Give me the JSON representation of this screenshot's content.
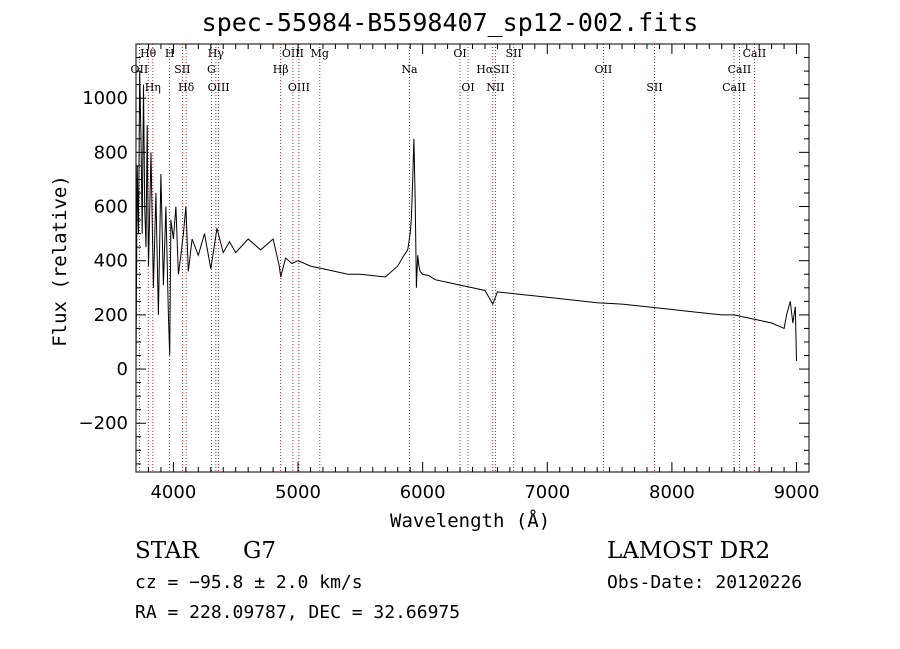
{
  "chart_data": {
    "type": "line",
    "title": "spec-55984-B5598407_sp12-002.fits",
    "xlabel": "Wavelength (Å)",
    "ylabel": "Flux (relative)",
    "xlim": [
      3700,
      9100
    ],
    "ylim": [
      -380,
      1200
    ],
    "x_ticks": [
      4000,
      5000,
      6000,
      7000,
      8000,
      9000
    ],
    "y_ticks": [
      -200,
      0,
      200,
      400,
      600,
      800,
      1000
    ],
    "grid": false,
    "series": [
      {
        "x": [
          3700,
          3710,
          3720,
          3730,
          3740,
          3750,
          3760,
          3770,
          3780,
          3790,
          3800,
          3820,
          3840,
          3860,
          3880,
          3900,
          3920,
          3940,
          3960,
          3970,
          3980,
          4000,
          4020,
          4040,
          4060,
          4080,
          4100,
          4120,
          4150,
          4200,
          4250,
          4300,
          4350,
          4400,
          4450,
          4500,
          4600,
          4700,
          4800,
          4850,
          4861,
          4900,
          4950,
          5000,
          5100,
          5200,
          5300,
          5400,
          5500,
          5600,
          5700,
          5800,
          5850,
          5880,
          5900,
          5910,
          5920,
          5930,
          5940,
          5950,
          5960,
          5970,
          5980,
          6000,
          6050,
          6100,
          6200,
          6300,
          6400,
          6500,
          6563,
          6600,
          6700,
          6800,
          6900,
          7000,
          7200,
          7400,
          7600,
          7800,
          8000,
          8200,
          8400,
          8500,
          8600,
          8700,
          8800,
          8850,
          8900,
          8920,
          8950,
          8970,
          8990,
          9000
        ],
        "y": [
          0,
          750,
          500,
          1100,
          850,
          500,
          1050,
          600,
          450,
          900,
          380,
          800,
          300,
          650,
          200,
          720,
          310,
          600,
          200,
          50,
          550,
          480,
          600,
          350,
          420,
          500,
          600,
          360,
          480,
          420,
          500,
          370,
          520,
          430,
          470,
          430,
          480,
          440,
          480,
          380,
          340,
          410,
          390,
          400,
          380,
          370,
          360,
          350,
          350,
          345,
          340,
          380,
          420,
          440,
          500,
          560,
          700,
          850,
          620,
          300,
          420,
          380,
          360,
          350,
          345,
          330,
          320,
          310,
          300,
          290,
          240,
          285,
          280,
          275,
          270,
          265,
          255,
          245,
          240,
          230,
          220,
          210,
          200,
          200,
          190,
          180,
          170,
          160,
          150,
          200,
          250,
          170,
          230,
          30
        ]
      }
    ],
    "lines": [
      {
        "label": "Hθ",
        "x": 3798
      },
      {
        "label": "OII",
        "x": 3727
      },
      {
        "label": "Hη",
        "x": 3835
      },
      {
        "label": "H",
        "x": 3970
      },
      {
        "label": "SII",
        "x": 4072
      },
      {
        "label": "Hδ",
        "x": 4102
      },
      {
        "label": "Hγ",
        "x": 4341
      },
      {
        "label": "G",
        "x": 4305
      },
      {
        "label": "OIII",
        "x": 4363
      },
      {
        "label": "OIII",
        "x": 4959
      },
      {
        "label": "Hβ",
        "x": 4861
      },
      {
        "label": "OIII",
        "x": 5007
      },
      {
        "label": "Mg",
        "x": 5175
      },
      {
        "label": "Na",
        "x": 5894
      },
      {
        "label": "OI",
        "x": 6364
      },
      {
        "label": "OI",
        "x": 6300
      },
      {
        "label": "HαSII",
        "x": 6563
      },
      {
        "label": "NII",
        "x": 6584
      },
      {
        "label": "SII",
        "x": 6731
      },
      {
        "label": "OII",
        "x": 7450
      },
      {
        "label": "SII",
        "x": 7860
      },
      {
        "label": "CaII",
        "x": 8662
      },
      {
        "label": "CaII",
        "x": 8542
      },
      {
        "label": "CaII",
        "x": 8498
      }
    ],
    "line_color": "#8b0000",
    "spectrum_color": "#000000"
  },
  "footer": {
    "object_class": "STAR",
    "subclass": "G7",
    "cz": "cz = −95.8 ± 2.0 km/s",
    "radec": "RA = 228.09787, DEC =  32.66975",
    "survey": "LAMOST DR2",
    "obs_date": "Obs-Date: 20120226"
  }
}
